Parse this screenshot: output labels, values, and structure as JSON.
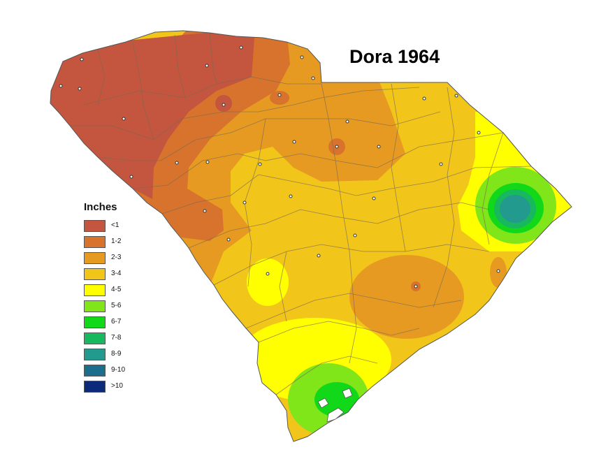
{
  "title": "Dora 1964",
  "legend": {
    "heading": "Inches",
    "items": [
      {
        "label": "<1",
        "color": "#c4553e"
      },
      {
        "label": "1-2",
        "color": "#d7732c"
      },
      {
        "label": "2-3",
        "color": "#e69a21"
      },
      {
        "label": "3-4",
        "color": "#f1c51a"
      },
      {
        "label": "4-5",
        "color": "#ffff00"
      },
      {
        "label": "5-6",
        "color": "#80e619"
      },
      {
        "label": "6-7",
        "color": "#12d81a"
      },
      {
        "label": "7-8",
        "color": "#18b85e"
      },
      {
        "label": "8-9",
        "color": "#229a8e"
      },
      {
        "label": "9-10",
        "color": "#1c6f8c"
      },
      {
        "label": ">10",
        "color": "#0d2a7a"
      }
    ]
  },
  "map": {
    "region": "South Carolina",
    "type": "rainfall-contour-map",
    "station_marker_count": 32
  }
}
